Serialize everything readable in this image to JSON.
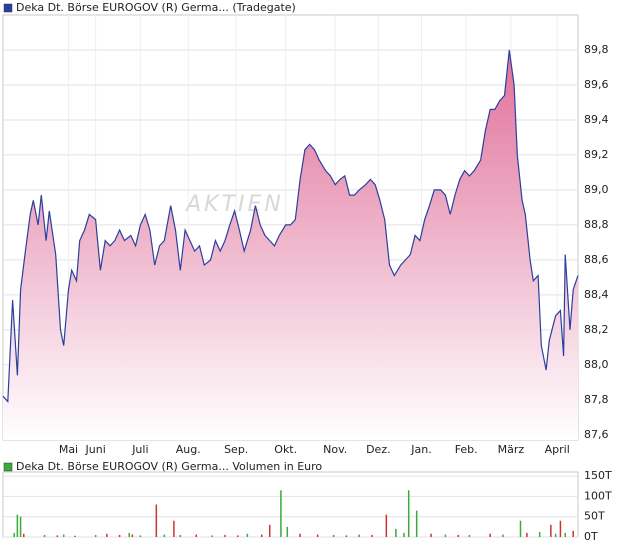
{
  "chart_data": [
    {
      "type": "area-line",
      "legend": "Deka Dt. Börse EUROGOV (R) Germa... (Tradegate)",
      "watermark": "AKTIEN",
      "line_color": "#2b3f9e",
      "fill_top": "#e0709a",
      "fill_bottom": "#ffffff",
      "legend_color": "#2b3f9e",
      "grid": true,
      "xlim": [
        0,
        360
      ],
      "ylim": [
        87.57,
        90.0
      ],
      "xticks": [
        {
          "value": 41,
          "label": "Mai"
        },
        {
          "value": 58,
          "label": "Juni"
        },
        {
          "value": 86,
          "label": "Juli"
        },
        {
          "value": 116,
          "label": "Aug."
        },
        {
          "value": 146,
          "label": "Sep."
        },
        {
          "value": 177,
          "label": "Okt."
        },
        {
          "value": 208,
          "label": "Nov."
        },
        {
          "value": 235,
          "label": "Dez."
        },
        {
          "value": 262,
          "label": "Jan."
        },
        {
          "value": 290,
          "label": "Feb."
        },
        {
          "value": 318,
          "label": "März"
        },
        {
          "value": 347,
          "label": "April"
        }
      ],
      "yticks": [
        {
          "value": 87.6,
          "label": "87,6"
        },
        {
          "value": 87.8,
          "label": "87,8"
        },
        {
          "value": 88.0,
          "label": "88,0"
        },
        {
          "value": 88.2,
          "label": "88,2"
        },
        {
          "value": 88.4,
          "label": "88,4"
        },
        {
          "value": 88.6,
          "label": "88,6"
        },
        {
          "value": 88.8,
          "label": "88,8"
        },
        {
          "value": 89.0,
          "label": "89,0"
        },
        {
          "value": 89.2,
          "label": "89,2"
        },
        {
          "value": 89.4,
          "label": "89,4"
        },
        {
          "value": 89.6,
          "label": "89,6"
        },
        {
          "value": 89.8,
          "label": "89,8"
        }
      ],
      "x": [
        0,
        3,
        6,
        9,
        11,
        14,
        17,
        19,
        22,
        24,
        27,
        29,
        33,
        36,
        38,
        41,
        43,
        46,
        48,
        51,
        54,
        58,
        61,
        64,
        67,
        70,
        73,
        76,
        80,
        83,
        86,
        89,
        92,
        95,
        98,
        101,
        105,
        108,
        111,
        114,
        117,
        120,
        123,
        126,
        130,
        133,
        136,
        139,
        142,
        145,
        148,
        151,
        155,
        158,
        161,
        164,
        167,
        170,
        173,
        177,
        180,
        183,
        186,
        189,
        192,
        195,
        198,
        202,
        205,
        208,
        211,
        214,
        217,
        220,
        223,
        227,
        230,
        233,
        236,
        239,
        242,
        245,
        249,
        252,
        255,
        258,
        261,
        264,
        267,
        270,
        274,
        277,
        280,
        283,
        286,
        289,
        292,
        295,
        299,
        302,
        305,
        308,
        311,
        314,
        317,
        320,
        322,
        325,
        327,
        330,
        332,
        335,
        337,
        340,
        342,
        346,
        349,
        351,
        352,
        355,
        357,
        360
      ],
      "values": [
        87.82,
        87.79,
        88.37,
        87.94,
        88.43,
        88.65,
        88.86,
        88.94,
        88.8,
        88.97,
        88.71,
        88.88,
        88.63,
        88.2,
        88.11,
        88.43,
        88.54,
        88.48,
        88.71,
        88.77,
        88.86,
        88.83,
        88.54,
        88.71,
        88.68,
        88.71,
        88.77,
        88.71,
        88.74,
        88.68,
        88.8,
        88.86,
        88.77,
        88.57,
        88.68,
        88.71,
        88.91,
        88.77,
        88.54,
        88.77,
        88.71,
        88.65,
        88.68,
        88.57,
        88.6,
        88.71,
        88.65,
        88.71,
        88.8,
        88.88,
        88.77,
        88.65,
        88.77,
        88.91,
        88.8,
        88.74,
        88.71,
        88.68,
        88.74,
        88.8,
        88.8,
        88.83,
        89.06,
        89.23,
        89.26,
        89.23,
        89.17,
        89.11,
        89.08,
        89.03,
        89.06,
        89.08,
        88.97,
        88.97,
        89.0,
        89.03,
        89.06,
        89.03,
        88.94,
        88.83,
        88.57,
        88.51,
        88.57,
        88.6,
        88.63,
        88.74,
        88.71,
        88.83,
        88.91,
        89.0,
        89.0,
        88.97,
        88.86,
        88.97,
        89.06,
        89.11,
        89.08,
        89.11,
        89.17,
        89.34,
        89.46,
        89.46,
        89.51,
        89.54,
        89.8,
        89.6,
        89.2,
        88.94,
        88.86,
        88.6,
        88.48,
        88.51,
        88.11,
        87.97,
        88.14,
        88.28,
        88.31,
        88.05,
        88.63,
        88.2,
        88.43,
        88.51
      ]
    },
    {
      "type": "volume-bar",
      "legend": "Deka Dt. Börse EUROGOV (R) Germa... Volumen in Euro",
      "legend_color": "#3aaa3a",
      "xlim": [
        0,
        360
      ],
      "ylim": [
        0,
        160
      ],
      "yticks": [
        {
          "value": 0,
          "label": "0T"
        },
        {
          "value": 50,
          "label": "50T"
        },
        {
          "value": 100,
          "label": "100T"
        },
        {
          "value": 150,
          "label": "150T"
        }
      ],
      "x": [
        7,
        9,
        11,
        13,
        26,
        34,
        38,
        45,
        58,
        65,
        73,
        79,
        81,
        86,
        96,
        101,
        107,
        111,
        121,
        131,
        139,
        147,
        153,
        162,
        167,
        174,
        178,
        186,
        197,
        207,
        215,
        223,
        231,
        240,
        246,
        251,
        254,
        259,
        268,
        277,
        285,
        292,
        305,
        313,
        324,
        328,
        336,
        343,
        346,
        349,
        352,
        357
      ],
      "values": [
        10,
        55,
        50,
        8,
        5,
        4,
        6,
        3,
        5,
        8,
        5,
        10,
        6,
        4,
        80,
        6,
        40,
        5,
        6,
        4,
        5,
        4,
        8,
        6,
        30,
        115,
        25,
        8,
        6,
        5,
        4,
        6,
        5,
        55,
        20,
        10,
        115,
        65,
        8,
        6,
        5,
        5,
        8,
        6,
        40,
        10,
        12,
        30,
        8,
        40,
        10,
        15
      ],
      "colors": [
        "#3aaa3a",
        "#3aaa3a",
        "#3aaa3a",
        "#cc3333",
        "#3aaa3a",
        "#cc3333",
        "#3aaa3a",
        "#cc3333",
        "#3aaa3a",
        "#cc3333",
        "#cc3333",
        "#3aaa3a",
        "#cc3333",
        "#3aaa3a",
        "#cc3333",
        "#3aaa3a",
        "#cc3333",
        "#3aaa3a",
        "#cc3333",
        "#3aaa3a",
        "#cc3333",
        "#cc3333",
        "#3aaa3a",
        "#cc3333",
        "#cc3333",
        "#3aaa3a",
        "#3aaa3a",
        "#cc3333",
        "#cc3333",
        "#3aaa3a",
        "#cc3333",
        "#3aaa3a",
        "#cc3333",
        "#cc3333",
        "#3aaa3a",
        "#3aaa3a",
        "#3aaa3a",
        "#3aaa3a",
        "#cc3333",
        "#3aaa3a",
        "#cc3333",
        "#3aaa3a",
        "#cc3333",
        "#3aaa3a",
        "#3aaa3a",
        "#cc3333",
        "#3aaa3a",
        "#cc3333",
        "#3aaa3a",
        "#cc3333",
        "#3aaa3a",
        "#cc3333"
      ]
    }
  ]
}
